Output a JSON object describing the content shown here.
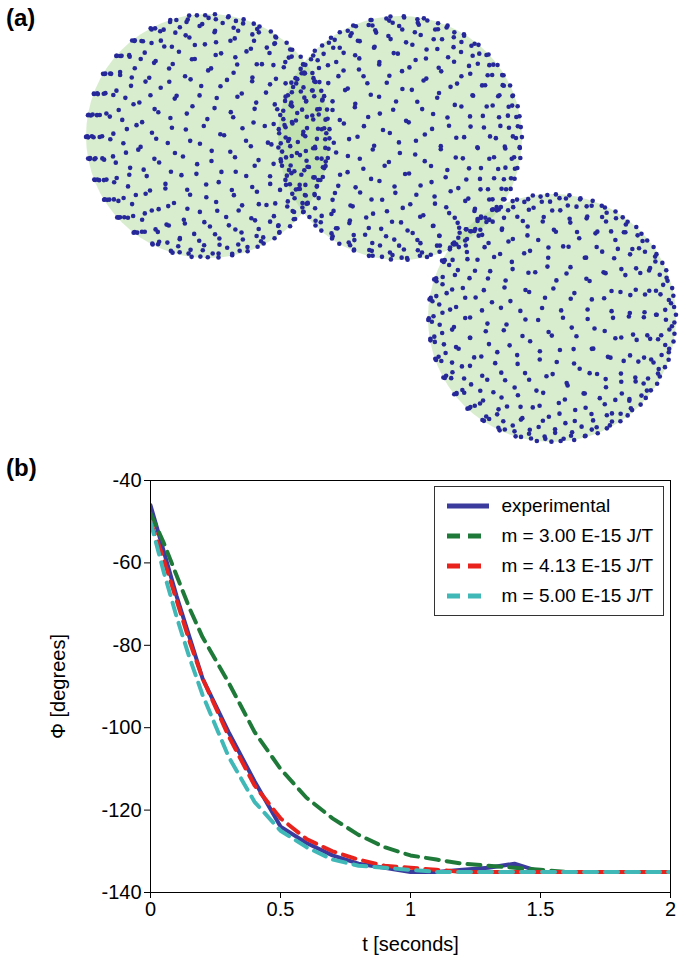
{
  "chart_data": [
    {
      "type": "diagram",
      "panel": "(a)"
    },
    {
      "type": "line",
      "panel": "(b)",
      "x_label": "t [seconds]",
      "y_label": "Φ [degrees]",
      "x": [
        0,
        0.05,
        0.1,
        0.15,
        0.2,
        0.3,
        0.4,
        0.5,
        0.6,
        0.7,
        0.8,
        0.9,
        1.0,
        1.1,
        1.2,
        1.3,
        1.4,
        1.5,
        1.6,
        1.7,
        1.8,
        1.9,
        2.0
      ],
      "series": [
        {
          "name": "experimental",
          "color": "#3b3b9e",
          "line_style": "solid",
          "values": [
            -46,
            -57,
            -68,
            -78,
            -88,
            -101,
            -113,
            -124,
            -128,
            -131,
            -133,
            -134,
            -135,
            -135,
            -134.5,
            -134,
            -133,
            -135,
            -135,
            -135,
            -135,
            -135,
            -135
          ]
        },
        {
          "name": "m = 3.00 E-15 J/T",
          "color": "#1f7a3a",
          "line_style": "dashed",
          "values": [
            -48,
            -55,
            -63,
            -71,
            -78,
            -89,
            -101,
            -110,
            -117,
            -122,
            -126,
            -129,
            -131,
            -132,
            -133,
            -133.5,
            -134,
            -134.5,
            -135,
            -135,
            -135,
            -135,
            -135
          ]
        },
        {
          "name": "m = 4.13 E-15 J/T",
          "color": "#e8231d",
          "line_style": "dashed",
          "values": [
            -50,
            -59,
            -69,
            -79,
            -88,
            -102,
            -114,
            -122,
            -127,
            -130,
            -132,
            -133.5,
            -134,
            -134.5,
            -135,
            -135,
            -135,
            -135,
            -135,
            -135,
            -135,
            -135,
            -135
          ]
        },
        {
          "name": "m = 5.00 E-15 J/T",
          "color": "#40b8b8",
          "line_style": "dashed",
          "values": [
            -50,
            -62,
            -73,
            -83,
            -92,
            -107,
            -118,
            -125,
            -129,
            -132,
            -133.5,
            -134,
            -134.5,
            -135,
            -135,
            -135,
            -135,
            -135,
            -135,
            -135,
            -135,
            -135,
            -135
          ]
        }
      ],
      "xlim": [
        0,
        2
      ],
      "xticks": [
        0,
        0.5,
        1,
        1.5,
        2
      ],
      "ylim": [
        -140,
        -40
      ],
      "yticks": [
        -140,
        -120,
        -100,
        -80,
        -60,
        -40
      ],
      "legend": "top-right"
    }
  ]
}
